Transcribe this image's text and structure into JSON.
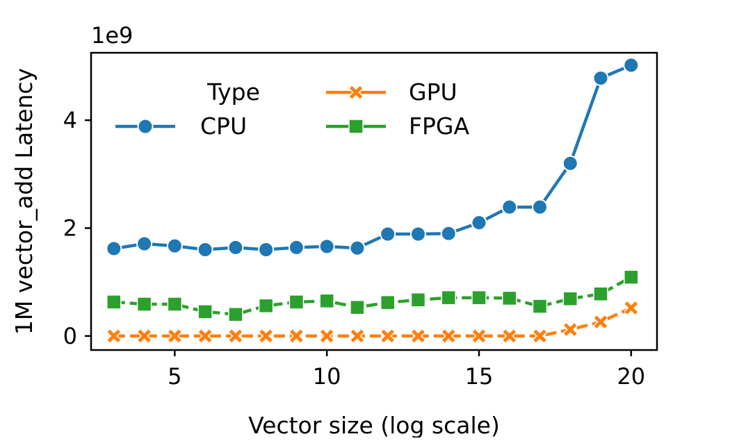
{
  "chart_data": {
    "type": "line",
    "xlabel": "Vector size (log scale)",
    "ylabel": "1M vector_add Latency",
    "y_multiplier_label": "1e9",
    "xlim": [
      2.25,
      20.85
    ],
    "ylim": [
      -0.26,
      5.25
    ],
    "xticks": [
      5,
      10,
      15,
      20
    ],
    "yticks": [
      0,
      2,
      4
    ],
    "grid": false,
    "legend": {
      "title": "Type",
      "placement": "upper-left"
    },
    "x": [
      3,
      4,
      5,
      6,
      7,
      8,
      9,
      10,
      11,
      12,
      13,
      14,
      15,
      16,
      17,
      18,
      19,
      20
    ],
    "series": [
      {
        "name": "CPU",
        "color": "#1f77b4",
        "marker": "circle",
        "values": [
          1.62,
          1.71,
          1.67,
          1.6,
          1.64,
          1.6,
          1.64,
          1.66,
          1.63,
          1.89,
          1.89,
          1.9,
          2.1,
          2.39,
          2.39,
          3.2,
          4.78,
          5.02
        ]
      },
      {
        "name": "GPU",
        "color": "#ff7f0e",
        "marker": "x",
        "values": [
          0.0,
          0.0,
          0.0,
          0.0,
          0.0,
          0.0,
          0.0,
          0.0,
          0.0,
          0.0,
          0.0,
          0.0,
          0.0,
          0.0,
          0.0,
          0.12,
          0.26,
          0.52
        ]
      },
      {
        "name": "FPGA",
        "color": "#2ca02c",
        "marker": "square",
        "values": [
          0.63,
          0.59,
          0.59,
          0.45,
          0.4,
          0.56,
          0.63,
          0.65,
          0.53,
          0.62,
          0.67,
          0.71,
          0.71,
          0.7,
          0.55,
          0.69,
          0.78,
          1.09
        ]
      }
    ]
  }
}
